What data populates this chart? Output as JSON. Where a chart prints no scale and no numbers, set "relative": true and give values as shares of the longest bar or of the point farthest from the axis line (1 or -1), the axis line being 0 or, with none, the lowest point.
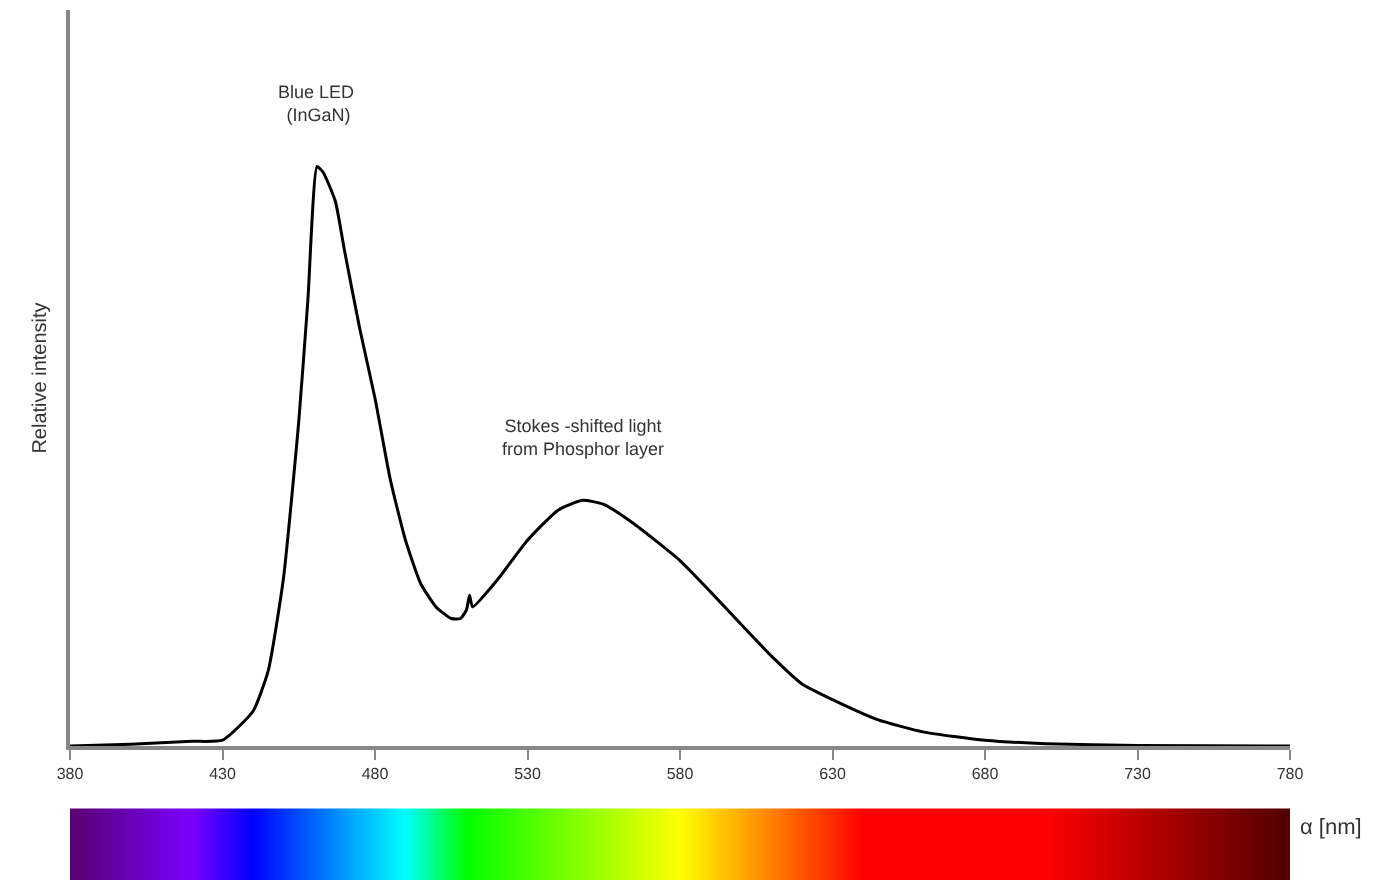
{
  "chart_data": {
    "type": "line",
    "relative": true,
    "xlabel": "α [nm]",
    "ylabel": "Relative intensity",
    "x": [
      380,
      400,
      420,
      430,
      440,
      445,
      450,
      455,
      458,
      461,
      463,
      467,
      470,
      475,
      480,
      485,
      490,
      495,
      500,
      505,
      508,
      510,
      511,
      512,
      520,
      530,
      540,
      548,
      555,
      565,
      580,
      590,
      600,
      610,
      620,
      630,
      645,
      660,
      680,
      700,
      730,
      780
    ],
    "series": [
      {
        "color": "#000000",
        "values": [
          0,
          0.003,
          0.008,
          0.01,
          0.06,
          0.13,
          0.29,
          0.56,
          0.77,
          1.0,
          0.99,
          0.94,
          0.855,
          0.72,
          0.6,
          0.46,
          0.355,
          0.28,
          0.24,
          0.22,
          0.22,
          0.235,
          0.26,
          0.24,
          0.286,
          0.355,
          0.407,
          0.424,
          0.417,
          0.383,
          0.32,
          0.266,
          0.21,
          0.155,
          0.107,
          0.08,
          0.045,
          0.024,
          0.01,
          0.004,
          0.001,
          0
        ]
      }
    ],
    "xlim": [
      380,
      780
    ],
    "xticks": [
      380,
      430,
      480,
      530,
      580,
      630,
      680,
      730,
      780
    ],
    "annotations": [
      {
        "text": "Blue LED\n (InGaN)",
        "x": 461,
        "y": 1.0
      },
      {
        "text": "Stokes -shifted light\nfrom Phosphor layer",
        "x": 548,
        "y": 0.424
      }
    ],
    "marker": "none",
    "line_style": "solid"
  }
}
